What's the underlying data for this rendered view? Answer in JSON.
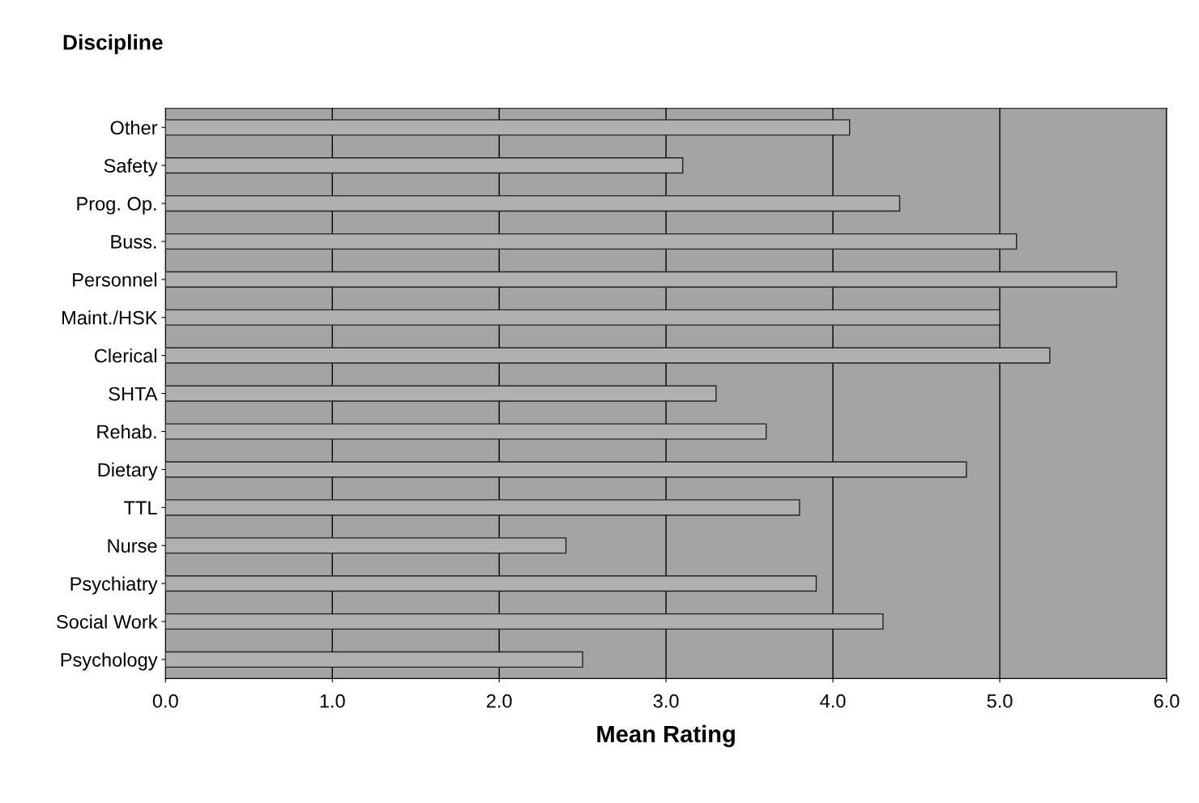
{
  "chart_data": {
    "type": "bar",
    "orientation": "horizontal",
    "title": "Discipline",
    "xlabel": "Mean Rating",
    "categories": [
      "Other",
      "Safety",
      "Prog. Op.",
      "Buss.",
      "Personnel",
      "Maint./HSK",
      "Clerical",
      "SHTA",
      "Rehab.",
      "Dietary",
      "TTL",
      "Nurse",
      "Psychiatry",
      "Social Work",
      "Psychology"
    ],
    "values": [
      4.1,
      3.1,
      4.4,
      5.1,
      5.7,
      5.0,
      5.3,
      3.3,
      3.6,
      4.8,
      3.8,
      2.4,
      3.9,
      4.3,
      2.5
    ],
    "color": "#b0b0b0",
    "xlim": [
      0,
      6
    ],
    "xticks": [
      {
        "value": 0,
        "label": "0.0"
      },
      {
        "value": 1,
        "label": "1.0"
      },
      {
        "value": 2,
        "label": "2.0"
      },
      {
        "value": 3,
        "label": "3.0"
      },
      {
        "value": 4,
        "label": "4.0"
      },
      {
        "value": 5,
        "label": "5.0"
      },
      {
        "value": 6,
        "label": "6.0"
      }
    ],
    "grid": "x"
  }
}
